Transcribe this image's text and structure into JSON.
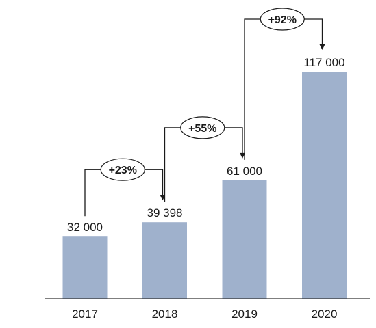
{
  "chart_data": {
    "type": "bar",
    "title": "",
    "xlabel": "",
    "ylabel": "",
    "categories": [
      "2017",
      "2018",
      "2019",
      "2020"
    ],
    "values": [
      32000,
      39398,
      61000,
      117000
    ],
    "value_labels": [
      "32 000",
      "39 398",
      "61 000",
      "117 000"
    ],
    "ylim": [
      0,
      130000
    ],
    "grid": false,
    "legend": "none",
    "bar_color": "#9fb1cc",
    "annotations": [
      {
        "from": "2017",
        "to": "2018",
        "label": "+23%"
      },
      {
        "from": "2018",
        "to": "2019",
        "label": "+55%"
      },
      {
        "from": "2019",
        "to": "2020",
        "label": "+92%"
      }
    ]
  }
}
